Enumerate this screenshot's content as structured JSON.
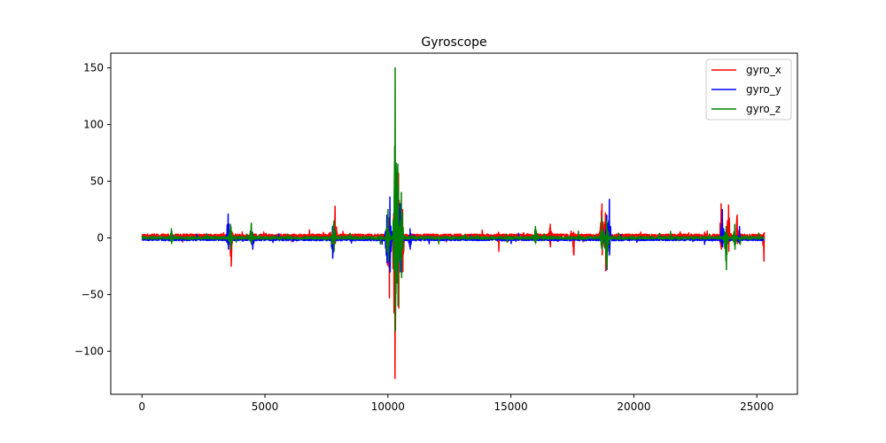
{
  "chart_data": {
    "type": "line",
    "title": "Gyroscope",
    "xlabel": "",
    "ylabel": "",
    "xlim": [
      -1270,
      26650
    ],
    "ylim": [
      -138,
      163
    ],
    "x_ticks": [
      0,
      5000,
      10000,
      15000,
      20000,
      25000
    ],
    "y_ticks": [
      -100,
      -50,
      0,
      50,
      100,
      150
    ],
    "grid": false,
    "legend_position": "top-right",
    "x_range": [
      0,
      25300
    ],
    "series": [
      {
        "name": "gyro_x",
        "color": "#ff0000",
        "baseline": 2,
        "noise": 1.4,
        "events": [
          {
            "x": 3620,
            "min": -25,
            "max": 10
          },
          {
            "x": 7850,
            "min": -5,
            "max": 28
          },
          {
            "x": 10000,
            "min": -25,
            "max": 15
          },
          {
            "x": 10050,
            "min": -53,
            "max": 18
          },
          {
            "x": 10280,
            "min": -124,
            "max": 57
          },
          {
            "x": 10430,
            "min": -62,
            "max": 57
          },
          {
            "x": 10600,
            "min": -30,
            "max": 25
          },
          {
            "x": 14500,
            "min": -12,
            "max": 5
          },
          {
            "x": 16600,
            "min": -8,
            "max": 12
          },
          {
            "x": 17550,
            "min": -15,
            "max": 5
          },
          {
            "x": 18700,
            "min": -15,
            "max": 30
          },
          {
            "x": 18850,
            "min": -29,
            "max": 22
          },
          {
            "x": 23550,
            "min": -10,
            "max": 30
          },
          {
            "x": 23850,
            "min": -12,
            "max": 29
          },
          {
            "x": 24200,
            "min": -5,
            "max": 20
          },
          {
            "x": 25300,
            "min": -27,
            "max": 5
          }
        ]
      },
      {
        "name": "gyro_y",
        "color": "#0000ff",
        "baseline": -1.5,
        "noise": 1.0,
        "events": [
          {
            "x": 3500,
            "min": -10,
            "max": 21
          },
          {
            "x": 4500,
            "min": -10,
            "max": 5
          },
          {
            "x": 7750,
            "min": -18,
            "max": 10
          },
          {
            "x": 9950,
            "min": -22,
            "max": 20
          },
          {
            "x": 10080,
            "min": -30,
            "max": 36
          },
          {
            "x": 10350,
            "min": -35,
            "max": 55
          },
          {
            "x": 10500,
            "min": -30,
            "max": 30
          },
          {
            "x": 10900,
            "min": -10,
            "max": 8
          },
          {
            "x": 18900,
            "min": -28,
            "max": 20
          },
          {
            "x": 19000,
            "min": -15,
            "max": 34
          },
          {
            "x": 23600,
            "min": -8,
            "max": 25
          },
          {
            "x": 24300,
            "min": -5,
            "max": 10
          }
        ]
      },
      {
        "name": "gyro_z",
        "color": "#008000",
        "baseline": 0,
        "noise": 1.3,
        "events": [
          {
            "x": 1200,
            "min": -5,
            "max": 8
          },
          {
            "x": 3600,
            "min": -10,
            "max": 12
          },
          {
            "x": 4450,
            "min": -5,
            "max": 13
          },
          {
            "x": 7800,
            "min": -12,
            "max": 15
          },
          {
            "x": 10000,
            "min": -20,
            "max": 25
          },
          {
            "x": 10300,
            "min": -82,
            "max": 150
          },
          {
            "x": 10400,
            "min": -60,
            "max": 65
          },
          {
            "x": 10550,
            "min": -35,
            "max": 40
          },
          {
            "x": 16000,
            "min": -5,
            "max": 10
          },
          {
            "x": 18700,
            "min": -10,
            "max": 18
          },
          {
            "x": 18900,
            "min": -27,
            "max": 15
          },
          {
            "x": 23750,
            "min": -28,
            "max": 10
          },
          {
            "x": 24100,
            "min": -10,
            "max": 12
          }
        ]
      }
    ]
  }
}
